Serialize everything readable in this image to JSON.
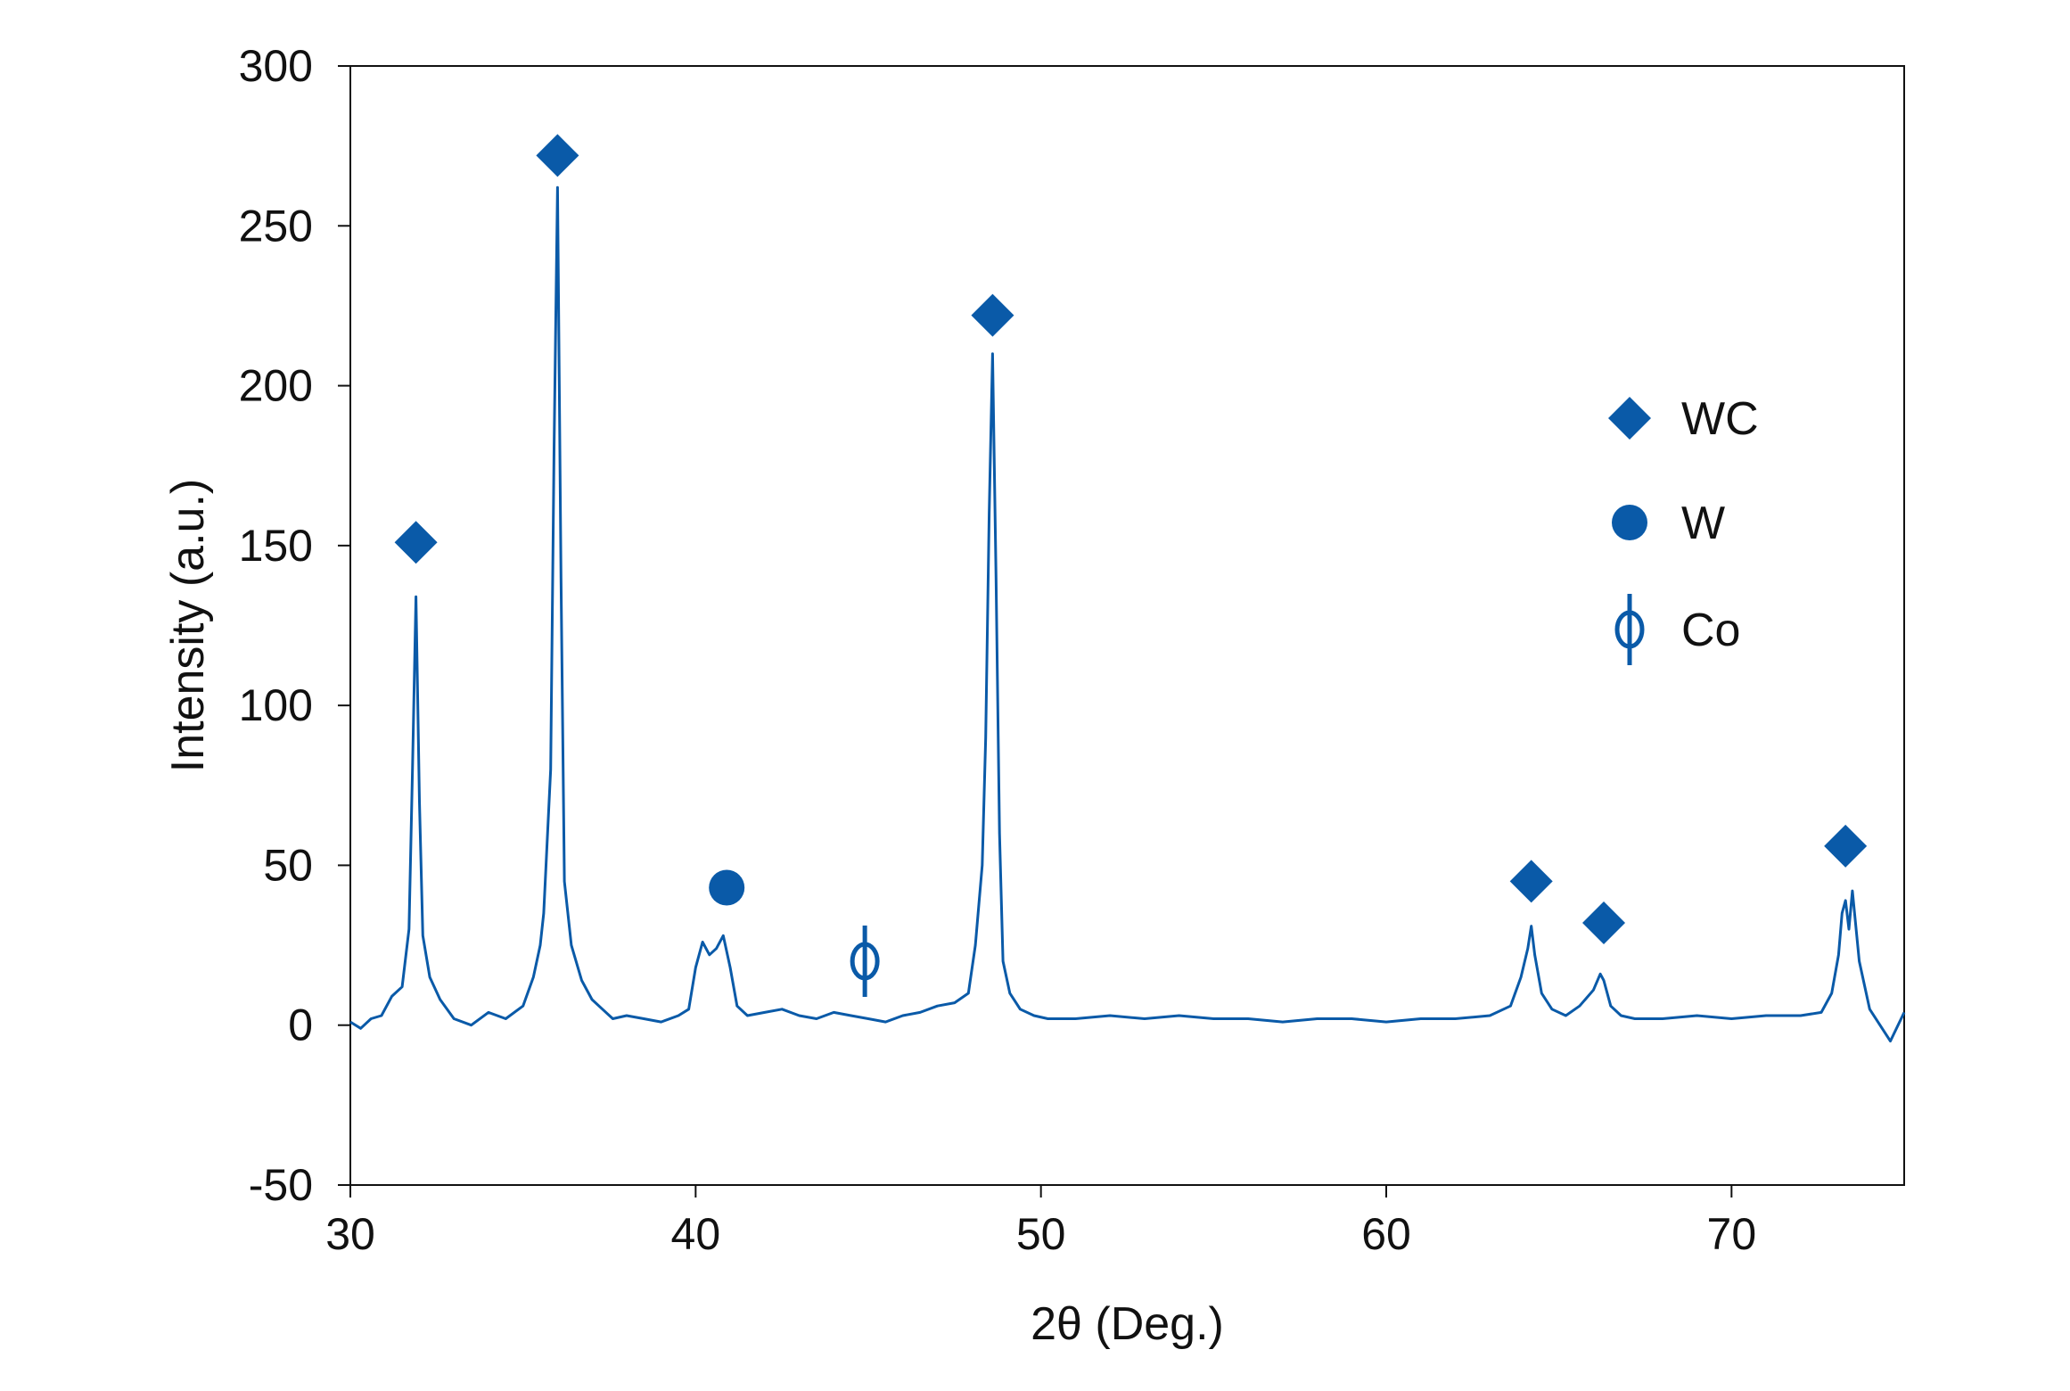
{
  "chart_data": {
    "type": "line",
    "xlabel": "2θ (Deg.)",
    "ylabel": "Intensity (a.u.)",
    "xlim": [
      30,
      75
    ],
    "ylim": [
      -50,
      300
    ],
    "xticks": [
      30,
      40,
      50,
      60,
      70
    ],
    "yticks": [
      -50,
      0,
      50,
      100,
      150,
      200,
      250,
      300
    ],
    "grid": false,
    "legend_position": "right",
    "series_color": "#0a5aa8",
    "marker_color": "#0a5aa8",
    "legend": [
      {
        "marker": "diamond",
        "label": "WC"
      },
      {
        "marker": "circle",
        "label": "W"
      },
      {
        "marker": "phi",
        "label": "Co"
      }
    ],
    "peak_markers": [
      {
        "phase": "WC",
        "marker": "diamond",
        "x": 31.9,
        "y": 151
      },
      {
        "phase": "WC",
        "marker": "diamond",
        "x": 36.0,
        "y": 272
      },
      {
        "phase": "W",
        "marker": "circle",
        "x": 40.9,
        "y": 43
      },
      {
        "phase": "Co",
        "marker": "phi",
        "x": 44.9,
        "y": 20
      },
      {
        "phase": "WC",
        "marker": "diamond",
        "x": 48.6,
        "y": 222
      },
      {
        "phase": "WC",
        "marker": "diamond",
        "x": 64.2,
        "y": 45
      },
      {
        "phase": "WC",
        "marker": "diamond",
        "x": 66.3,
        "y": 32
      },
      {
        "phase": "WC",
        "marker": "diamond",
        "x": 73.3,
        "y": 56
      }
    ],
    "series": [
      {
        "x": [
          30.0,
          30.3,
          30.6,
          30.9,
          31.2,
          31.5,
          31.7,
          31.8,
          31.9,
          32.0,
          32.1,
          32.3,
          32.6,
          33.0,
          33.5,
          34.0,
          34.5,
          35.0,
          35.3,
          35.5,
          35.6,
          35.8,
          35.9,
          36.0,
          36.1,
          36.2,
          36.4,
          36.7,
          37.0,
          37.3,
          37.6,
          38.0,
          38.5,
          39.0,
          39.5,
          39.8,
          40.0,
          40.2,
          40.4,
          40.6,
          40.8,
          41.0,
          41.2,
          41.5,
          42.0,
          42.5,
          43.0,
          43.5,
          44.0,
          44.5,
          45.0,
          45.5,
          46.0,
          46.5,
          47.0,
          47.5,
          47.9,
          48.1,
          48.3,
          48.4,
          48.5,
          48.6,
          48.7,
          48.8,
          48.9,
          49.1,
          49.4,
          49.8,
          50.2,
          51.0,
          52.0,
          53.0,
          54.0,
          55.0,
          56.0,
          57.0,
          58.0,
          59.0,
          60.0,
          61.0,
          62.0,
          63.0,
          63.6,
          63.9,
          64.1,
          64.2,
          64.3,
          64.5,
          64.8,
          65.2,
          65.6,
          66.0,
          66.2,
          66.3,
          66.5,
          66.8,
          67.2,
          68.0,
          69.0,
          70.0,
          71.0,
          72.0,
          72.6,
          72.9,
          73.1,
          73.2,
          73.3,
          73.4,
          73.5,
          73.7,
          74.0,
          74.3,
          74.6,
          75.0
        ],
        "y": [
          1,
          -1,
          2,
          3,
          9,
          12,
          30,
          80,
          134,
          70,
          28,
          15,
          8,
          2,
          0,
          4,
          2,
          6,
          15,
          25,
          35,
          80,
          180,
          262,
          140,
          45,
          25,
          14,
          8,
          5,
          2,
          3,
          2,
          1,
          3,
          5,
          18,
          26,
          22,
          24,
          28,
          18,
          6,
          3,
          4,
          5,
          3,
          2,
          4,
          3,
          2,
          1,
          3,
          4,
          6,
          7,
          10,
          25,
          50,
          90,
          160,
          210,
          140,
          60,
          20,
          10,
          5,
          3,
          2,
          2,
          3,
          2,
          3,
          2,
          2,
          1,
          2,
          2,
          1,
          2,
          2,
          3,
          6,
          15,
          24,
          31,
          22,
          10,
          5,
          3,
          6,
          11,
          16,
          14,
          6,
          3,
          2,
          2,
          3,
          2,
          3,
          3,
          4,
          10,
          22,
          35,
          39,
          30,
          42,
          20,
          5,
          0,
          -5,
          4
        ]
      }
    ]
  }
}
